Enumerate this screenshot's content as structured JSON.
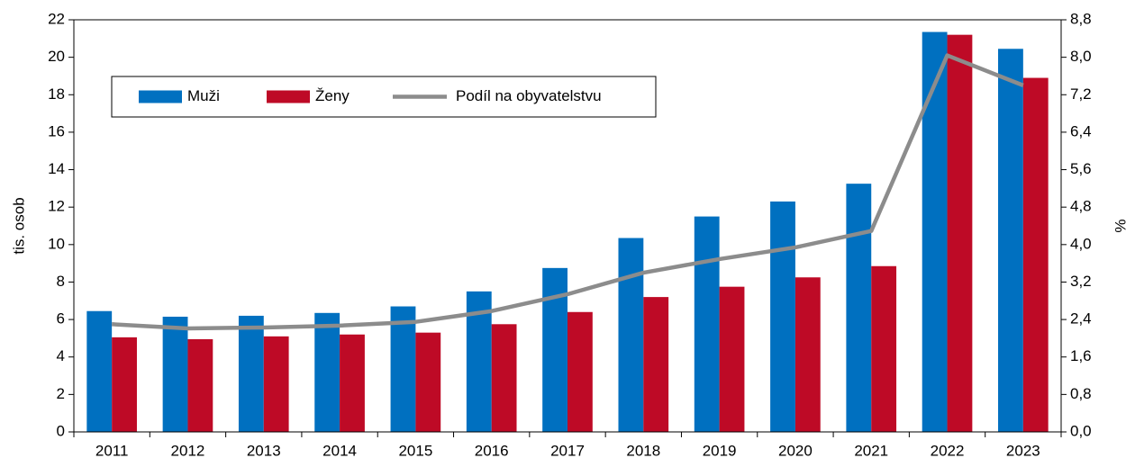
{
  "chart_data": {
    "type": "bar",
    "categories": [
      "2011",
      "2012",
      "2013",
      "2014",
      "2015",
      "2016",
      "2017",
      "2018",
      "2019",
      "2020",
      "2021",
      "2022",
      "2023"
    ],
    "series": [
      {
        "name": "Muži",
        "color": "#0070c0",
        "values": [
          6.45,
          6.15,
          6.2,
          6.35,
          6.7,
          7.5,
          8.75,
          10.35,
          11.5,
          12.3,
          13.25,
          21.35,
          20.45
        ]
      },
      {
        "name": "Ženy",
        "color": "#be0a26",
        "values": [
          5.05,
          4.95,
          5.1,
          5.2,
          5.3,
          5.75,
          6.4,
          7.2,
          7.75,
          8.25,
          8.85,
          21.2,
          18.9
        ]
      },
      {
        "name": "Podíl na obyvatelstvu",
        "color": "#8c8c8c",
        "type": "line",
        "axis": "y2",
        "values": [
          2.3,
          2.21,
          2.23,
          2.27,
          2.35,
          2.58,
          2.94,
          3.4,
          3.69,
          3.94,
          4.29,
          8.04,
          7.4
        ]
      }
    ],
    "ylabel": "tis. osob",
    "y2label": "%",
    "ylim": [
      0,
      22
    ],
    "yticks": [
      0,
      2,
      4,
      6,
      8,
      10,
      12,
      14,
      16,
      18,
      20,
      22
    ],
    "y2lim": [
      0,
      8.8
    ],
    "y2ticks": [
      {
        "value": 0,
        "label": "0,0"
      },
      {
        "value": 0.8,
        "label": "0,8"
      },
      {
        "value": 1.6,
        "label": "1,6"
      },
      {
        "value": 2.4,
        "label": "2,4"
      },
      {
        "value": 3.2,
        "label": "3,2"
      },
      {
        "value": 4,
        "label": "4,0"
      },
      {
        "value": 4.8,
        "label": "4,8"
      },
      {
        "value": 5.6,
        "label": "5,6"
      },
      {
        "value": 6.4,
        "label": "6,4"
      },
      {
        "value": 7.2,
        "label": "7,2"
      },
      {
        "value": 8,
        "label": "8,0"
      },
      {
        "value": 8.8,
        "label": "8,8"
      }
    ],
    "legend": "upper left"
  }
}
